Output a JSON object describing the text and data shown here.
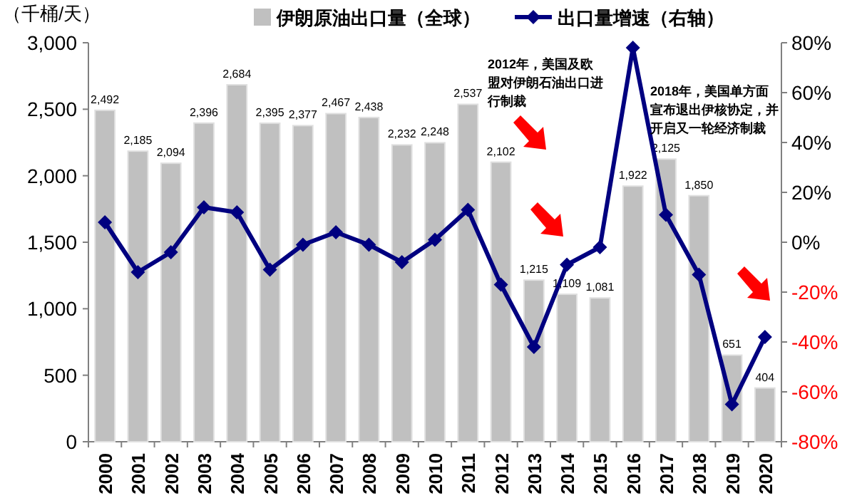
{
  "chart_data": {
    "type": "bar",
    "ylabel": "（千桶/天）",
    "categories": [
      "2000",
      "2001",
      "2002",
      "2003",
      "2004",
      "2005",
      "2006",
      "2007",
      "2008",
      "2009",
      "2010",
      "2011",
      "2012",
      "2013",
      "2014",
      "2015",
      "2016",
      "2017",
      "2018",
      "2019",
      "2020"
    ],
    "series": [
      {
        "name": "伊朗原油出口量（全球）",
        "color": "#c0c0c0",
        "values": [
          2492,
          2185,
          2094,
          2396,
          2684,
          2395,
          2377,
          2467,
          2438,
          2232,
          2248,
          2537,
          2102,
          1215,
          1109,
          1081,
          1922,
          2125,
          1850,
          651,
          404
        ],
        "value_labels": [
          "2,492",
          "2,185",
          "2,094",
          "2,396",
          "2,684",
          "2,395",
          "2,377",
          "2,467",
          "2,438",
          "2,232",
          "2,248",
          "2,537",
          "2,102",
          "1,215",
          "1,109",
          "1,081",
          "1,922",
          "2,125",
          "1,850",
          "651",
          "404"
        ]
      },
      {
        "name": "出口量增速（右轴）",
        "type": "line",
        "axis": "y2",
        "color": "#000080",
        "marker": "diamond",
        "values": [
          8,
          -12,
          -4,
          14,
          12,
          -11,
          -1,
          4,
          -1,
          -8,
          1,
          13,
          -17,
          -42,
          -9,
          -2,
          78,
          11,
          -13,
          -65,
          -38
        ]
      }
    ],
    "ylim": [
      0,
      3000
    ],
    "yticks": [
      {
        "value": 0,
        "label": "0"
      },
      {
        "value": 500,
        "label": "500"
      },
      {
        "value": 1000,
        "label": "1,000"
      },
      {
        "value": 1500,
        "label": "1,500"
      },
      {
        "value": 2000,
        "label": "2,000"
      },
      {
        "value": 2500,
        "label": "2,500"
      },
      {
        "value": 3000,
        "label": "3,000"
      }
    ],
    "y2lim": [
      -80,
      80
    ],
    "y2ticks": [
      {
        "value": -80,
        "label": "-80%"
      },
      {
        "value": -60,
        "label": "-60%"
      },
      {
        "value": -40,
        "label": "-40%"
      },
      {
        "value": -20,
        "label": "-20%"
      },
      {
        "value": 0,
        "label": "0%"
      },
      {
        "value": 20,
        "label": "20%"
      },
      {
        "value": 40,
        "label": "40%"
      },
      {
        "value": 60,
        "label": "60%"
      },
      {
        "value": 80,
        "label": "80%"
      }
    ],
    "annotations": [
      "2012年，美国及欧盟对伊朗石油出口进行制裁",
      "2018年，美国单方面宣布退出伊核协定，并开启又一轮经济制裁"
    ],
    "legend": "top",
    "grid": false
  }
}
